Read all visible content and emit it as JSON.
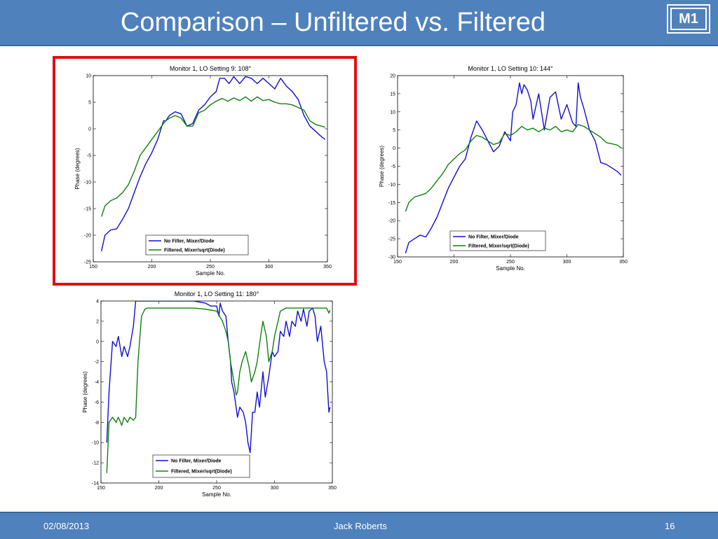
{
  "slide": {
    "title": "Comparison – Unfiltered vs. Filtered",
    "badge": "M1",
    "footer": {
      "date": "02/08/2013",
      "author": "Jack Roberts",
      "page": "16"
    },
    "colors": {
      "bar": "#4f81bd",
      "highlight": "#e01010",
      "unfiltered": "#1010d0",
      "filtered": "#108010"
    }
  },
  "chart_data": [
    {
      "type": "line",
      "title": "Monitor 1, LO Setting 9: 108°",
      "xlabel": "Sample No.",
      "ylabel": "Phase (degrees)",
      "xlim": [
        150,
        350
      ],
      "ylim": [
        -25,
        10
      ],
      "xticks": [
        150,
        200,
        250,
        300,
        350
      ],
      "yticks": [
        10,
        5,
        0,
        -5,
        -10,
        -15,
        -20,
        -25
      ],
      "legend_position": "bottom-left",
      "highlighted": true,
      "series": [
        {
          "name": "No Filter, Mixer/Diode",
          "x": [
            157,
            160,
            165,
            170,
            175,
            180,
            185,
            190,
            195,
            200,
            205,
            210,
            212,
            215,
            220,
            225,
            230,
            235,
            240,
            245,
            250,
            255,
            258,
            262,
            266,
            270,
            275,
            280,
            285,
            290,
            295,
            300,
            305,
            310,
            315,
            320,
            325,
            330,
            335,
            340,
            345,
            348
          ],
          "y": [
            -23,
            -20,
            -19,
            -18.8,
            -17,
            -15,
            -12,
            -9,
            -6.5,
            -4.5,
            -2,
            1.5,
            1.5,
            2.5,
            3.2,
            2.8,
            0.5,
            1,
            3.5,
            4.5,
            6,
            7,
            9.5,
            9.5,
            8.5,
            9.8,
            8.5,
            9.8,
            9.5,
            8.5,
            9.5,
            8.5,
            7.5,
            9.5,
            8,
            7,
            5.5,
            2.5,
            0.5,
            -0.5,
            -1.5,
            -2
          ]
        },
        {
          "name": "Filtered, Mixer/sqrt(Diode)",
          "x": [
            157,
            160,
            165,
            170,
            175,
            180,
            185,
            190,
            195,
            200,
            205,
            210,
            212,
            215,
            220,
            225,
            230,
            235,
            240,
            245,
            250,
            255,
            260,
            265,
            270,
            275,
            280,
            285,
            290,
            295,
            300,
            305,
            310,
            315,
            320,
            325,
            330,
            335,
            340,
            345,
            348
          ],
          "y": [
            -16.5,
            -14.5,
            -13.5,
            -13,
            -12,
            -10.5,
            -8,
            -5,
            -3.5,
            -2,
            -0.5,
            1,
            1.5,
            2,
            2.5,
            2,
            0.5,
            0.5,
            3,
            3.5,
            4.5,
            5.2,
            5.7,
            5.2,
            5.8,
            5.3,
            6,
            5.2,
            6,
            5.3,
            5.5,
            5,
            4.7,
            4.7,
            4.5,
            4,
            3.5,
            1.5,
            0.8,
            0.5,
            0.3
          ]
        }
      ]
    },
    {
      "type": "line",
      "title": "Monitor 1, LO Setting 10: 144°",
      "xlabel": "Sample No.",
      "ylabel": "Phase (degrees)",
      "xlim": [
        150,
        350
      ],
      "ylim": [
        -30,
        20
      ],
      "xticks": [
        150,
        200,
        250,
        300,
        350
      ],
      "yticks": [
        20,
        15,
        10,
        5,
        0,
        -5,
        -10,
        -15,
        -20,
        -25,
        -30
      ],
      "legend_position": "bottom-left",
      "highlighted": false,
      "series": [
        {
          "name": "No Filter, Mixer/Diode",
          "x": [
            157,
            160,
            165,
            170,
            175,
            180,
            185,
            190,
            195,
            200,
            205,
            210,
            215,
            220,
            225,
            230,
            235,
            240,
            245,
            250,
            252,
            255,
            258,
            260,
            262,
            265,
            268,
            270,
            275,
            280,
            285,
            290,
            295,
            300,
            305,
            308,
            310,
            312,
            315,
            320,
            325,
            330,
            335,
            340,
            345,
            348
          ],
          "y": [
            -29,
            -26,
            -25,
            -24,
            -24.5,
            -22,
            -19,
            -15,
            -11,
            -8,
            -5,
            -3,
            3,
            7.5,
            5,
            2,
            -1,
            0.5,
            4.5,
            2,
            10,
            12,
            18,
            15,
            17.5,
            16,
            13,
            8,
            15,
            5,
            14,
            15.5,
            8,
            12,
            7,
            6,
            18,
            14,
            11,
            5,
            2,
            -4,
            -4.5,
            -5.5,
            -6.5,
            -7.5
          ]
        },
        {
          "name": "Filtered, Mixer/sqrt(Diode)",
          "x": [
            157,
            160,
            165,
            170,
            175,
            180,
            185,
            190,
            195,
            200,
            205,
            210,
            215,
            220,
            225,
            230,
            235,
            240,
            245,
            250,
            255,
            260,
            265,
            270,
            275,
            280,
            285,
            290,
            295,
            300,
            305,
            310,
            315,
            320,
            325,
            330,
            335,
            340,
            345,
            348
          ],
          "y": [
            -17.5,
            -15,
            -13.5,
            -13,
            -12.5,
            -11,
            -9,
            -7,
            -4.5,
            -3,
            -1.5,
            -0.5,
            2,
            3.5,
            3,
            2,
            1,
            1.5,
            4,
            3.5,
            4.5,
            6,
            5,
            5.5,
            4.5,
            5.5,
            5,
            6,
            4.5,
            5,
            4.5,
            6.5,
            6,
            5,
            4,
            3,
            1.5,
            1.2,
            0.8,
            0
          ]
        }
      ]
    },
    {
      "type": "line",
      "title": "Monitor 1, LO Setting 11: 180°",
      "xlabel": "Sample No.",
      "ylabel": "Phase (degrees)",
      "xlim": [
        150,
        350
      ],
      "ylim": [
        -14,
        4
      ],
      "xticks": [
        150,
        200,
        250,
        300,
        350
      ],
      "yticks": [
        4,
        2,
        0,
        -2,
        -4,
        -6,
        -8,
        -10,
        -12,
        -14
      ],
      "legend_position": "bottom-left",
      "highlighted": false,
      "series": [
        {
          "name": "No Filter, Mixer/Diode",
          "x": [
            155,
            157,
            160,
            163,
            165,
            168,
            170,
            173,
            175,
            178,
            180,
            183,
            185,
            190,
            200,
            210,
            220,
            230,
            240,
            245,
            250,
            252,
            253,
            255,
            258,
            260,
            262,
            263,
            265,
            268,
            270,
            273,
            275,
            277,
            279,
            281,
            283,
            285,
            287,
            290,
            292,
            295,
            298,
            300,
            303,
            305,
            308,
            310,
            313,
            315,
            318,
            320,
            323,
            325,
            328,
            330,
            333,
            335,
            337,
            340,
            343,
            345,
            346,
            347,
            348
          ],
          "y": [
            -10,
            -5,
            0,
            -0.5,
            0.5,
            -1.5,
            -0.5,
            -1.5,
            -0.5,
            1.5,
            4,
            4,
            4,
            4,
            4,
            4,
            4,
            4,
            3.8,
            3.5,
            3.5,
            2.5,
            3.8,
            3,
            2.5,
            0,
            -2,
            -4,
            -5,
            -7.5,
            -6.5,
            -7,
            -8,
            -10,
            -11,
            -7,
            -7,
            -5,
            -6.5,
            -3,
            -5.5,
            -3.5,
            -1,
            -1.5,
            -1,
            1,
            0.5,
            2,
            0.5,
            2,
            1.5,
            3,
            2,
            3.2,
            1.5,
            3,
            3.3,
            2.5,
            0,
            1.5,
            -2,
            -3,
            -5,
            -7,
            -6.5
          ]
        },
        {
          "name": "Filtered, Mixer/sqrt(Diode)",
          "x": [
            155,
            157,
            160,
            163,
            165,
            168,
            170,
            173,
            175,
            178,
            180,
            182,
            185,
            188,
            190,
            195,
            200,
            210,
            220,
            230,
            240,
            245,
            250,
            255,
            258,
            260,
            262,
            265,
            267,
            268,
            270,
            272,
            275,
            278,
            280,
            283,
            285,
            288,
            290,
            293,
            295,
            298,
            300,
            303,
            305,
            310,
            320,
            330,
            340,
            345,
            347,
            348
          ],
          "y": [
            -13,
            -8,
            -7.5,
            -8,
            -7.5,
            -8.3,
            -7.5,
            -8,
            -7.5,
            -7.8,
            -7.5,
            -2,
            2.5,
            3.2,
            3.3,
            3.3,
            3.3,
            3.3,
            3.3,
            3.3,
            3.2,
            3.1,
            3,
            2,
            1,
            0,
            -2,
            -4,
            -5.3,
            -5,
            -3,
            -2,
            -1,
            -2.5,
            -4,
            -3,
            -2,
            0.5,
            2,
            0.5,
            -2,
            -1,
            0.5,
            2,
            3,
            3.3,
            3.3,
            3.3,
            3.3,
            3.3,
            2.8,
            3.1
          ]
        }
      ]
    }
  ]
}
